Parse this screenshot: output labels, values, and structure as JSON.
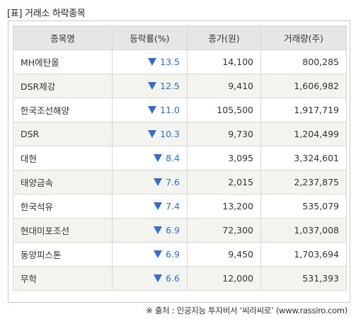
{
  "title": "[표] 거래소 하락종목",
  "colors": {
    "down": "#2c6fd6",
    "header_bg": "#e6e6e6",
    "row_alt_bg": "#f4f4ef"
  },
  "icons": {
    "down": "down-triangle-icon"
  },
  "headers": [
    "종목명",
    "등락률(%)",
    "종가(원)",
    "거래량(주)"
  ],
  "rows": [
    {
      "name": "MH에탄올",
      "rate": "13.5",
      "price": "14,100",
      "volume": "800,285"
    },
    {
      "name": "DSR제강",
      "rate": "12.5",
      "price": "9,410",
      "volume": "1,606,982"
    },
    {
      "name": "한국조선해양",
      "rate": "11.0",
      "price": "105,500",
      "volume": "1,917,719"
    },
    {
      "name": "DSR",
      "rate": "10.3",
      "price": "9,730",
      "volume": "1,204,499"
    },
    {
      "name": "대현",
      "rate": "8.4",
      "price": "3,095",
      "volume": "3,324,601"
    },
    {
      "name": "태양금속",
      "rate": "7.6",
      "price": "2,015",
      "volume": "2,237,875"
    },
    {
      "name": "한국석유",
      "rate": "7.4",
      "price": "13,200",
      "volume": "535,079"
    },
    {
      "name": "현대미포조선",
      "rate": "6.9",
      "price": "72,300",
      "volume": "1,037,008"
    },
    {
      "name": "동양피스톤",
      "rate": "6.9",
      "price": "9,450",
      "volume": "1,703,694"
    },
    {
      "name": "무학",
      "rate": "6.6",
      "price": "12,000",
      "volume": "531,393"
    }
  ],
  "source": "※ 출처 : 인공지능 투자비서 ‘씨라씨로’ (www.rassiro.com)"
}
